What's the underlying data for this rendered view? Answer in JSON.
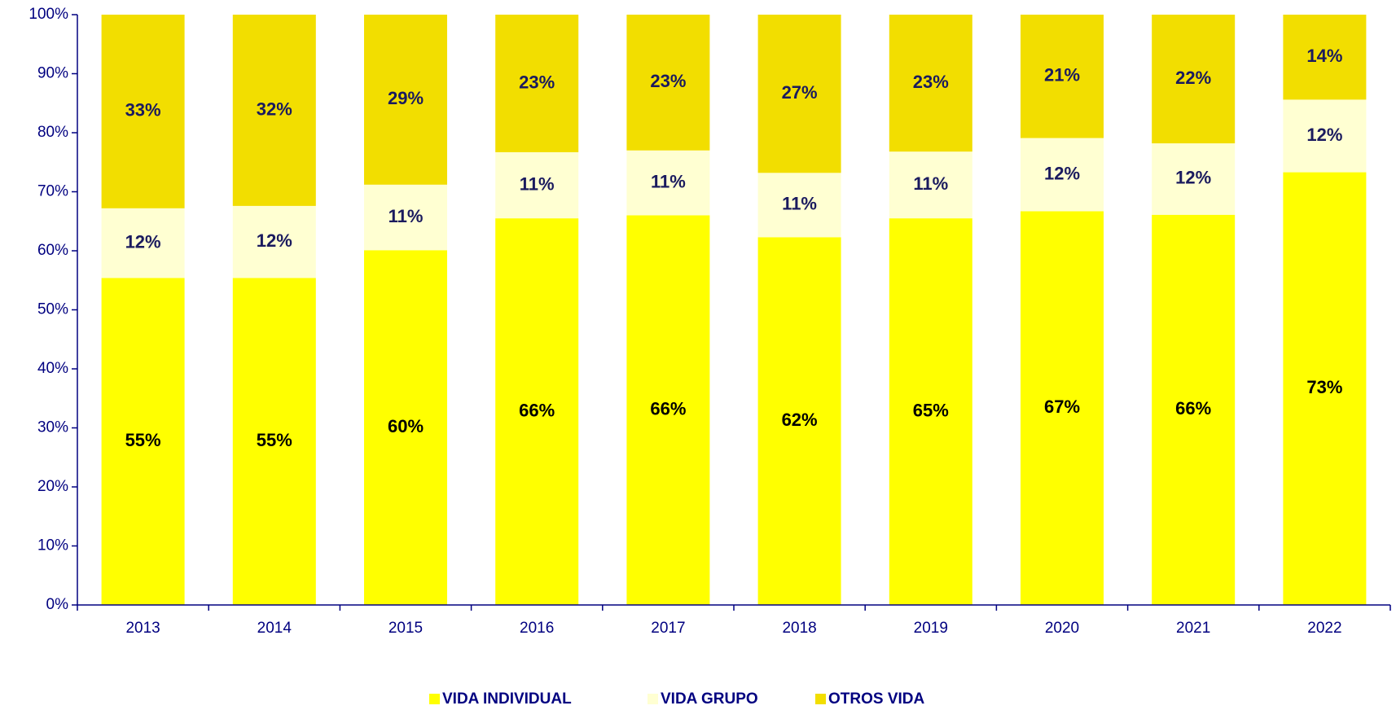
{
  "chart_data": {
    "type": "stacked_bar",
    "categories": [
      "2013",
      "2014",
      "2015",
      "2016",
      "2017",
      "2018",
      "2019",
      "2020",
      "2021",
      "2022"
    ],
    "series": [
      {
        "name": "VIDA INDIVIDUAL",
        "color": "#ffff00",
        "values": [
          55.4,
          55.4,
          60.1,
          65.5,
          66.0,
          62.3,
          65.5,
          66.7,
          66.1,
          73.3
        ],
        "value_labels": [
          "55%",
          "55%",
          "60%",
          "66%",
          "66%",
          "62%",
          "65%",
          "67%",
          "66%",
          "73%"
        ]
      },
      {
        "name": "VIDA GRUPO",
        "color": "#ffffd2",
        "values": [
          11.8,
          12.2,
          11.1,
          11.2,
          11.0,
          10.9,
          11.3,
          12.4,
          12.1,
          12.3
        ],
        "value_labels": [
          "12%",
          "12%",
          "11%",
          "11%",
          "11%",
          "11%",
          "11%",
          "12%",
          "12%",
          "12%"
        ]
      },
      {
        "name": "OTROS VIDA",
        "color": "#f2de00",
        "values": [
          32.8,
          32.4,
          28.8,
          23.3,
          23.0,
          26.8,
          23.2,
          20.9,
          21.8,
          14.4
        ],
        "value_labels": [
          "33%",
          "32%",
          "29%",
          "23%",
          "23%",
          "27%",
          "23%",
          "21%",
          "22%",
          "14%"
        ]
      }
    ],
    "ylim": [
      0,
      100
    ],
    "yticks": [
      {
        "value": 0,
        "label": "0%"
      },
      {
        "value": 10,
        "label": "10%"
      },
      {
        "value": 20,
        "label": "20%"
      },
      {
        "value": 30,
        "label": "30%"
      },
      {
        "value": 40,
        "label": "40%"
      },
      {
        "value": 50,
        "label": "50%"
      },
      {
        "value": 60,
        "label": "60%"
      },
      {
        "value": 70,
        "label": "70%"
      },
      {
        "value": 80,
        "label": "80%"
      },
      {
        "value": 90,
        "label": "90%"
      },
      {
        "value": 100,
        "label": "100%"
      }
    ],
    "legend": "bottom"
  }
}
